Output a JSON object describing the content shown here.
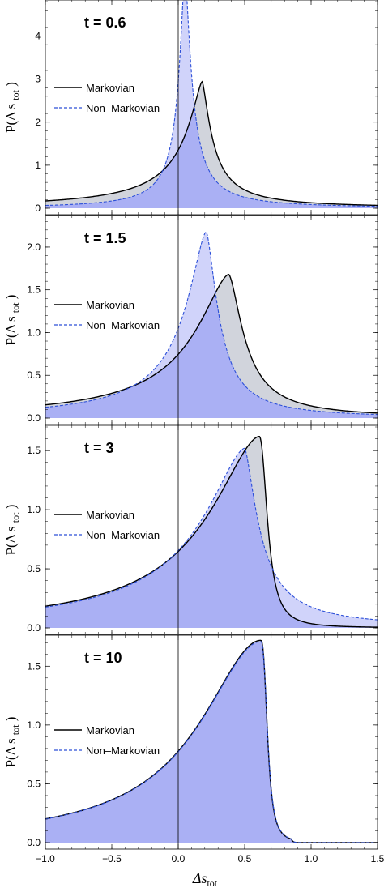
{
  "chart_data": {
    "type": "area",
    "xlabel": "Δs",
    "xlabel_sub": "tot",
    "ylabel": "P(Δ s ",
    "ylabel_sub": "tot",
    "ylabel_close": " )",
    "xlim": [
      -1.0,
      1.5
    ],
    "x_ticks": [
      -1.0,
      -0.5,
      0.0,
      0.5,
      1.0,
      1.5
    ],
    "x_tick_labels": [
      "−1.0",
      "−0.5",
      "0.0",
      "0.5",
      "1.0",
      "1.5"
    ],
    "vertical_line_x": 0.0,
    "colors": {
      "markovian_line": "#000000",
      "markovian_fill": "#c9ccd6",
      "non_markovian_line": "#2c4fd8",
      "non_markovian_fill": "#a9aef5",
      "overlap_fill": "#a9aef5"
    },
    "legend": {
      "markovian": "Markovian",
      "non_markovian": "Non–Markovian"
    },
    "panels": [
      {
        "title": "t = 0.6",
        "ylim": [
          0,
          4.8
        ],
        "y_ticks": [
          0,
          1,
          2,
          3,
          4
        ],
        "y_tick_labels": [
          "0",
          "1",
          "2",
          "3",
          "4"
        ],
        "markovian": {
          "x0": 0.18,
          "peak": 2.95,
          "wl": 0.16,
          "wr": 0.09,
          "pl": 1.4,
          "pr": 1.4,
          "cut": 0
        },
        "non_markovian": {
          "x0": 0.05,
          "peak": 5.5,
          "wl": 0.055,
          "wr": 0.06,
          "pl": 1.5,
          "pr": 1.5,
          "cut": 0
        }
      },
      {
        "title": "t = 1.5",
        "ylim": [
          0,
          2.35
        ],
        "y_ticks": [
          0,
          0.5,
          1.0,
          1.5,
          2.0
        ],
        "y_tick_labels": [
          "0.0",
          "0.5",
          "1.0",
          "1.5",
          "2.0"
        ],
        "markovian": {
          "x0": 0.38,
          "peak": 1.68,
          "wl": 0.33,
          "wr": 0.14,
          "pl": 1.6,
          "pr": 1.6,
          "cut": 0
        },
        "non_markovian": {
          "x0": 0.21,
          "peak": 2.18,
          "wl": 0.2,
          "wr": 0.11,
          "pl": 1.55,
          "pr": 1.6,
          "cut": 0
        }
      },
      {
        "title": "t = 3",
        "ylim": [
          0,
          1.7
        ],
        "y_ticks": [
          0,
          0.5,
          1.0,
          1.5
        ],
        "y_tick_labels": [
          "0.0",
          "0.5",
          "1.0",
          "1.5"
        ],
        "markovian": {
          "x0": 0.61,
          "peak": 1.62,
          "wl": 0.48,
          "wr": 0.07,
          "pl": 1.7,
          "pr": 2.2,
          "cut": 0
        },
        "non_markovian": {
          "x0": 0.5,
          "peak": 1.52,
          "wl": 0.42,
          "wr": 0.13,
          "pl": 1.6,
          "pr": 1.5,
          "cut": 0
        }
      },
      {
        "title": "t = 10",
        "ylim": [
          0,
          1.75
        ],
        "y_ticks": [
          0,
          0.5,
          1.0,
          1.5
        ],
        "y_tick_labels": [
          "0.0",
          "0.5",
          "1.0",
          "1.5"
        ],
        "markovian": {
          "x0": 0.62,
          "peak": 1.72,
          "wl": 0.56,
          "wr": 0.055,
          "pl": 1.9,
          "pr": 2.8,
          "cut": 0.85
        },
        "non_markovian": {
          "x0": 0.62,
          "peak": 1.71,
          "wl": 0.56,
          "wr": 0.056,
          "pl": 1.9,
          "pr": 2.8,
          "cut": 0.85
        }
      }
    ]
  }
}
